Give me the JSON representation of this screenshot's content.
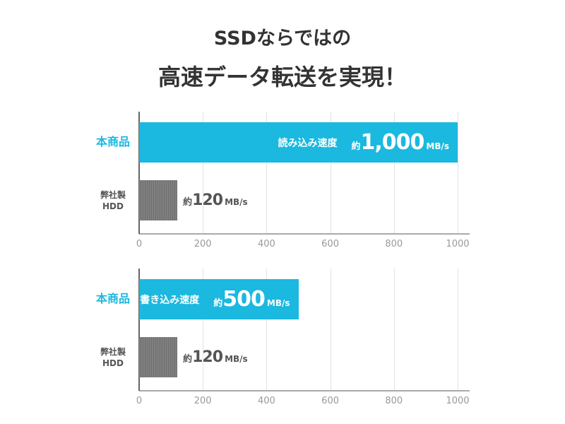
{
  "header": {
    "title": [
      "SSDならではの",
      "高速データ転送を実現！"
    ]
  },
  "chart_data": [
    {
      "type": "bar",
      "orientation": "horizontal",
      "metric": "読み込み速度",
      "categories": [
        "本商品",
        "弊社製\nHDD"
      ],
      "values": [
        1000,
        120
      ],
      "value_labels": [
        "1,000",
        "120"
      ],
      "value_prefix": "約",
      "value_unit": "MB/s",
      "colors": [
        "#1bb8e0",
        "#808080"
      ],
      "label_colors": [
        "#1bb8e0",
        "#555555"
      ],
      "xlim": [
        0,
        1000
      ],
      "xticks": [
        0,
        200,
        400,
        600,
        800,
        1000
      ],
      "grid": true
    },
    {
      "type": "bar",
      "orientation": "horizontal",
      "metric": "書き込み速度",
      "categories": [
        "本商品",
        "弊社製\nHDD"
      ],
      "values": [
        500,
        120
      ],
      "value_labels": [
        "500",
        "120"
      ],
      "value_prefix": "約",
      "value_unit": "MB/s",
      "colors": [
        "#1bb8e0",
        "#808080"
      ],
      "label_colors": [
        "#1bb8e0",
        "#555555"
      ],
      "xlim": [
        0,
        1000
      ],
      "xticks": [
        0,
        200,
        400,
        600,
        800,
        1000
      ],
      "grid": true
    }
  ]
}
